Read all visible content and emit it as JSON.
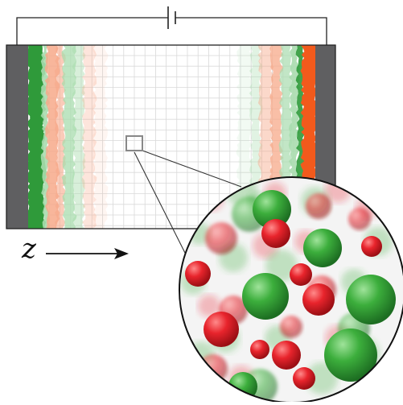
{
  "diagram": {
    "axis_label": "z",
    "colors": {
      "electrode": "#5f5f61",
      "green_dark": "#2f9a3a",
      "green_light": "#a8dcae",
      "orange_dark": "#f25a1c",
      "orange_light": "#f7a98a",
      "grid": "#d9d9d9",
      "sphere_red": "#e8242c",
      "sphere_green": "#3cae3c"
    },
    "icons": {
      "battery": "battery-icon",
      "arrow": "arrow-right-icon"
    }
  }
}
